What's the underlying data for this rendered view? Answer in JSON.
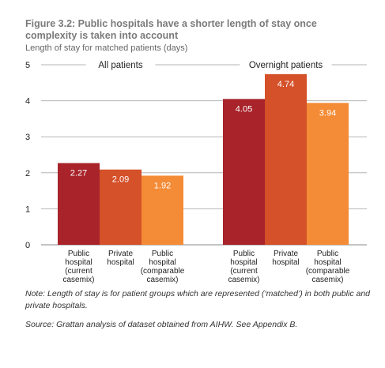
{
  "chart_data": {
    "type": "bar",
    "title": "Figure 3.2: Public hospitals have a shorter length of stay once complexity is taken into account",
    "subtitle": "Length of stay for matched patients (days)",
    "ylim": [
      0,
      5
    ],
    "yticks": [
      "0",
      "1",
      "2",
      "3",
      "4",
      "5"
    ],
    "grid": true,
    "colors": [
      "#a8232a",
      "#d4512a",
      "#f48b36"
    ],
    "groups": [
      {
        "name": "All patients",
        "bars": [
          {
            "label": [
              "Public",
              "hospital",
              "(current",
              "casemix)"
            ],
            "value": 2.27,
            "value_label": "2.27"
          },
          {
            "label": [
              "Private",
              "hospital"
            ],
            "value": 2.09,
            "value_label": "2.09"
          },
          {
            "label": [
              "Public",
              "hospital",
              "(comparable",
              "casemix)"
            ],
            "value": 1.92,
            "value_label": "1.92"
          }
        ]
      },
      {
        "name": "Overnight patients",
        "bars": [
          {
            "label": [
              "Public",
              "hospital",
              "(current",
              "casemix)"
            ],
            "value": 4.05,
            "value_label": "4.05"
          },
          {
            "label": [
              "Private",
              "hospital"
            ],
            "value": 4.74,
            "value_label": "4.74"
          },
          {
            "label": [
              "Public",
              "hospital",
              "(comparable",
              "casemix)"
            ],
            "value": 3.94,
            "value_label": "3.94"
          }
        ]
      }
    ],
    "note": "Note: Length of stay is for patient groups which are represented (‘matched’) in both public and private hospitals.",
    "source": "Source: Grattan analysis of dataset obtained from AIHW. See Appendix B."
  }
}
